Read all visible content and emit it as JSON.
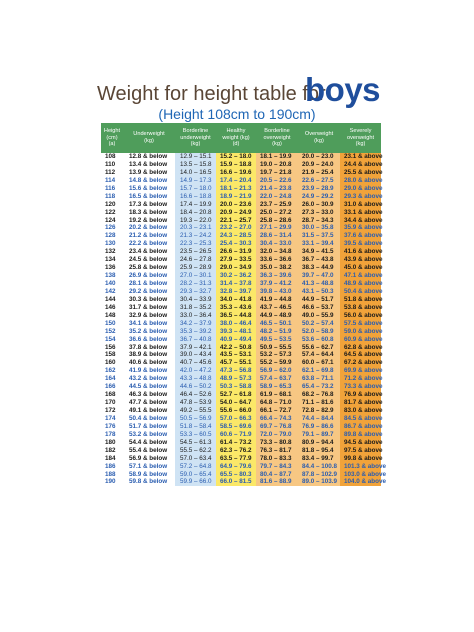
{
  "title": {
    "prefix": "Weight for height table for",
    "word": "boys"
  },
  "subtitle": "(Height 108cm to 190cm)",
  "headers": [
    "Height\n(cm)\n(a)",
    "Underweight\n(kg)",
    "Borderline\nunderweight\n(kg)",
    "Healthy\nweight (kg)\n(d)",
    "Borderline\noverweight\n(kg)",
    "Overweight\n(kg)",
    "Severely\noverweight\n(kg)"
  ],
  "colors": {
    "header": "#4f9d5b",
    "borderline_under": "#cfe3f4",
    "healthy": "#fbe868",
    "borderline_over": "#f7c783",
    "severe": "#f1a33a",
    "title_word": "#1f4e9c"
  },
  "rows": [
    [
      "108",
      "12.8 & below",
      "12.9 – 15.1",
      "15.2 – 18.0",
      "18.1 – 19.9",
      "20.0 – 23.0",
      "23.1 & above"
    ],
    [
      "110",
      "13.4 & below",
      "13.5 – 15.8",
      "15.9 – 18.8",
      "19.0 – 20.8",
      "20.9 – 24.0",
      "24.4 & above"
    ],
    [
      "112",
      "13.9 & below",
      "14.0 – 16.5",
      "16.6 – 19.6",
      "19.7 – 21.8",
      "21.9 – 25.4",
      "25.5 & above"
    ],
    [
      "114",
      "14.8 & below",
      "14.9 – 17.3",
      "17.4 – 20.4",
      "20.5 – 22.6",
      "22.6 – 27.5",
      "28.0 & above"
    ],
    [
      "116",
      "15.6 & below",
      "15.7 – 18.0",
      "18.1 – 21.3",
      "21.4 – 23.8",
      "23.9 – 28.9",
      "29.0 & above"
    ],
    [
      "118",
      "16.5 & below",
      "16.6 – 18.8",
      "18.9 – 21.9",
      "22.0 – 24.8",
      "24.9 – 29.2",
      "29.3 & above"
    ],
    [
      "120",
      "17.3 & below",
      "17.4 – 19.9",
      "20.0 – 23.6",
      "23.7 – 25.9",
      "26.0 – 30.9",
      "31.0 & above"
    ],
    [
      "122",
      "18.3 & below",
      "18.4 – 20.8",
      "20.9 – 24.9",
      "25.0 – 27.2",
      "27.3 – 33.0",
      "33.1 & above"
    ],
    [
      "124",
      "19.2 & below",
      "19.3 – 22.0",
      "22.1 – 25.7",
      "25.8 – 28.6",
      "28.7 – 34.3",
      "34.4 & above"
    ],
    [
      "126",
      "20.2 & below",
      "20.3 – 23.1",
      "23.2 – 27.0",
      "27.1 – 29.9",
      "30.0 – 35.8",
      "35.9 & above"
    ],
    [
      "128",
      "21.2 & below",
      "21.3 – 24.2",
      "24.3 – 28.5",
      "28.6 – 31.4",
      "31.5 – 37.5",
      "37.6 & above"
    ],
    [
      "130",
      "22.2 & below",
      "22.3 – 25.3",
      "25.4 – 30.3",
      "30.4 – 33.0",
      "33.1 – 39.4",
      "39.5 & above"
    ],
    [
      "132",
      "23.4 & below",
      "23.5 – 26.5",
      "26.6 – 31.9",
      "32.0 – 34.8",
      "34.9 – 41.5",
      "41.6 & above"
    ],
    [
      "134",
      "24.5 & below",
      "24.6 – 27.8",
      "27.9 – 33.5",
      "33.6 – 36.6",
      "36.7 – 43.8",
      "43.9 & above"
    ],
    [
      "136",
      "25.8 & below",
      "25.9 – 28.9",
      "29.0 – 34.9",
      "35.0 – 38.2",
      "38.3 – 44.9",
      "45.0 & above"
    ],
    [
      "138",
      "26.9 & below",
      "27.0 – 30.1",
      "30.2 – 36.2",
      "36.3 – 39.6",
      "39.7 – 47.0",
      "47.1 & above"
    ],
    [
      "140",
      "28.1 & below",
      "28.2 – 31.3",
      "31.4 – 37.8",
      "37.9 – 41.2",
      "41.3 – 48.8",
      "48.9 & above"
    ],
    [
      "142",
      "29.2 & below",
      "29.3 – 32.7",
      "32.8 – 39.7",
      "39.8 – 43.0",
      "43.1 – 50.3",
      "50.4 & above"
    ],
    [
      "144",
      "30.3 & below",
      "30.4 – 33.9",
      "34.0 – 41.8",
      "41.9 – 44.8",
      "44.9 – 51.7",
      "51.8 & above"
    ],
    [
      "146",
      "31.7 & below",
      "31.8 – 35.2",
      "35.3 – 43.6",
      "43.7 – 46.5",
      "46.6 – 53.7",
      "53.8 & above"
    ],
    [
      "148",
      "32.9 & below",
      "33.0 – 36.4",
      "36.5 – 44.8",
      "44.9 – 48.9",
      "49.0 – 55.9",
      "56.0 & above"
    ],
    [
      "150",
      "34.1 & below",
      "34.2 – 37.9",
      "38.0 – 46.4",
      "46.5 – 50.1",
      "50.2 – 57.4",
      "57.5 & above"
    ],
    [
      "152",
      "35.2 & below",
      "35.3 – 39.2",
      "39.3 – 48.1",
      "48.2 – 51.9",
      "52.0 – 58.9",
      "59.0 & above"
    ],
    [
      "154",
      "36.6 & below",
      "36.7 – 40.8",
      "40.9 – 49.4",
      "49.5 – 53.5",
      "53.6 – 60.8",
      "60.9 & above"
    ],
    [
      "156",
      "37.8 & below",
      "37.9 – 42.1",
      "42.2 – 50.8",
      "50.9 – 55.5",
      "55.6 – 62.7",
      "62.8 & above"
    ],
    [
      "158",
      "38.9 & below",
      "39.0 – 43.4",
      "43.5 – 53.1",
      "53.2 – 57.3",
      "57.4 – 64.4",
      "64.5 & above"
    ],
    [
      "160",
      "40.6 & below",
      "40.7 – 45.6",
      "45.7 – 55.1",
      "55.2 – 59.9",
      "60.0 – 67.1",
      "67.2 & above"
    ],
    [
      "162",
      "41.9 & below",
      "42.0 – 47.2",
      "47.3 – 56.8",
      "56.9 – 62.0",
      "62.1 – 69.8",
      "69.9 & above"
    ],
    [
      "164",
      "43.2 & below",
      "43.3 – 48.8",
      "48.9 – 57.3",
      "57.4 – 63.7",
      "63.8 – 71.1",
      "71.2 & above"
    ],
    [
      "166",
      "44.5 & below",
      "44.6 – 50.2",
      "50.3 – 58.8",
      "58.9 – 65.3",
      "65.4 – 73.2",
      "73.3 & above"
    ],
    [
      "168",
      "46.3 & below",
      "46.4 – 52.6",
      "52.7 – 61.8",
      "61.9 – 68.1",
      "68.2 – 76.8",
      "76.9 & above"
    ],
    [
      "170",
      "47.7 & below",
      "47.8 – 53.9",
      "54.0 – 64.7",
      "64.8 – 71.0",
      "71.1 – 81.6",
      "81.7 & above"
    ],
    [
      "172",
      "49.1 & below",
      "49.2 – 55.5",
      "55.6 – 66.0",
      "66.1 – 72.7",
      "72.8 – 82.9",
      "83.0 & above"
    ],
    [
      "174",
      "50.4 & below",
      "50.5 – 56.9",
      "57.0 – 66.3",
      "66.4 – 74.3",
      "74.4 – 84.4",
      "84.5 & above"
    ],
    [
      "176",
      "51.7 & below",
      "51.8 – 58.4",
      "58.5 – 69.6",
      "69.7 – 76.8",
      "76.9 – 86.6",
      "86.7 & above"
    ],
    [
      "178",
      "53.2 & below",
      "53.3 – 60.5",
      "60.6 – 71.9",
      "72.0 – 79.0",
      "79.1 – 89.7",
      "89.8 & above"
    ],
    [
      "180",
      "54.4 & below",
      "54.5 – 61.3",
      "61.4 – 73.2",
      "73.3 – 80.8",
      "80.9 – 94.4",
      "94.5 & above"
    ],
    [
      "182",
      "55.4 & below",
      "55.5 – 62.2",
      "62.3 – 76.2",
      "76.3 – 81.7",
      "81.8 – 95.4",
      "97.5 & above"
    ],
    [
      "184",
      "56.9 & below",
      "57.0 – 63.4",
      "63.5 – 77.9",
      "78.0 – 83.3",
      "83.4 – 99.7",
      "99.8 & above"
    ],
    [
      "186",
      "57.1 & below",
      "57.2 – 64.8",
      "64.9 – 79.6",
      "79.7 – 84.3",
      "84.4 – 100.8",
      "101.3 & above"
    ],
    [
      "188",
      "58.9 & below",
      "59.0 – 65.4",
      "65.5 – 80.3",
      "80.4 – 87.7",
      "87.8 – 102.9",
      "103.0 & above"
    ],
    [
      "190",
      "59.8 & below",
      "59.9 – 66.0",
      "66.0 – 81.5",
      "81.6 – 88.9",
      "89.0 – 103.9",
      "104.0 & above"
    ]
  ]
}
